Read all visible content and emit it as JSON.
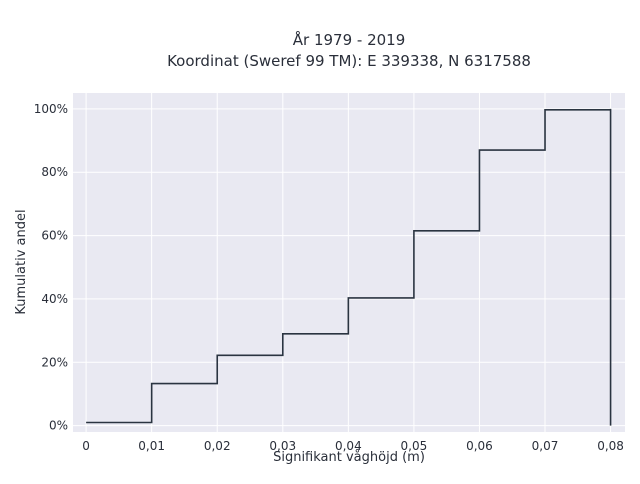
{
  "chart_data": {
    "type": "line",
    "line_shape": "step",
    "title": [
      "År 1979 - 2019",
      "Koordinat (Sweref 99 TM): E 339338, N 6317588"
    ],
    "xlabel": "Signifikant våghöjd (m)",
    "ylabel": "Kumulativ andel",
    "xlim": [
      -0.002,
      0.0822
    ],
    "ylim": [
      -0.02,
      1.05
    ],
    "grid": true,
    "legend": "none",
    "x_ticks": [
      {
        "value": 0,
        "label": "0"
      },
      {
        "value": 0.01,
        "label": "0,01"
      },
      {
        "value": 0.02,
        "label": "0,02"
      },
      {
        "value": 0.03,
        "label": "0,03"
      },
      {
        "value": 0.04,
        "label": "0,04"
      },
      {
        "value": 0.05,
        "label": "0,05"
      },
      {
        "value": 0.06,
        "label": "0,06"
      },
      {
        "value": 0.07,
        "label": "0,07"
      },
      {
        "value": 0.08,
        "label": "0,08"
      }
    ],
    "y_ticks": [
      {
        "value": 0,
        "label": "0%"
      },
      {
        "value": 0.2,
        "label": "20%"
      },
      {
        "value": 0.4,
        "label": "40%"
      },
      {
        "value": 0.6,
        "label": "60%"
      },
      {
        "value": 0.8,
        "label": "80%"
      },
      {
        "value": 1.0,
        "label": "100%"
      }
    ],
    "series": [
      {
        "color": "#2a3441",
        "x": [
          0,
          0.01,
          0.02,
          0.03,
          0.04,
          0.05,
          0.06,
          0.07,
          0.08,
          0.08
        ],
        "y": [
          0.01,
          0.133,
          0.222,
          0.29,
          0.403,
          0.615,
          0.87,
          0.997,
          1.0,
          0.0
        ]
      }
    ]
  },
  "colors": {
    "plot_background": "#e9e9f2",
    "grid": "#ffffff",
    "line": "#2a3441"
  }
}
